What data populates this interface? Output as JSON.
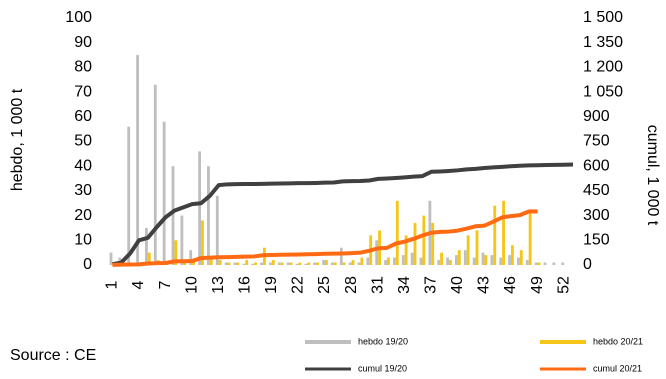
{
  "chart_data": {
    "type": "bar_line",
    "y_label": "hebdo, 1 000 t",
    "y2_label": "cumul, 1 000 t",
    "source": "Source : CE",
    "x": [
      1,
      2,
      3,
      4,
      5,
      6,
      7,
      8,
      9,
      10,
      11,
      12,
      13,
      14,
      15,
      16,
      17,
      18,
      19,
      20,
      21,
      22,
      23,
      24,
      25,
      26,
      27,
      28,
      29,
      30,
      31,
      32,
      33,
      34,
      35,
      36,
      37,
      38,
      39,
      40,
      41,
      42,
      43,
      44,
      45,
      46,
      47,
      48,
      49,
      50,
      51,
      52,
      53
    ],
    "xlim": [
      0.5,
      53
    ],
    "xticks": [
      1,
      4,
      7,
      10,
      13,
      16,
      19,
      22,
      25,
      28,
      31,
      34,
      37,
      40,
      43,
      46,
      49,
      52
    ],
    "ylim": [
      0,
      100
    ],
    "yticks": [
      0,
      10,
      20,
      30,
      40,
      50,
      60,
      70,
      80,
      90,
      100
    ],
    "y2lim": [
      0,
      1500
    ],
    "y2ticks": [
      0,
      150,
      300,
      450,
      600,
      750,
      900,
      {
        "value": 1050,
        "label": "1 050"
      },
      {
        "value": 1200,
        "label": "1 200"
      },
      {
        "value": 1350,
        "label": "1 350"
      },
      {
        "value": 1500,
        "label": "1 500"
      }
    ],
    "series": [
      {
        "name": "hebdo 19/20",
        "kind": "bar",
        "color": "#bfbfbf",
        "values": [
          5,
          3,
          56,
          85,
          15,
          73,
          58,
          40,
          20,
          6,
          46,
          40,
          28,
          1,
          1,
          0.5,
          0.5,
          1,
          1,
          1,
          1,
          0.5,
          0.5,
          1,
          2,
          1,
          7,
          1,
          1,
          3,
          10,
          2,
          3,
          4,
          5,
          3,
          26,
          2,
          3,
          4,
          6,
          3,
          5,
          4,
          3,
          4,
          3,
          2,
          1,
          1,
          1,
          1,
          null
        ]
      },
      {
        "name": "hebdo 20/21",
        "kind": "bar",
        "color": "#f5c518",
        "values": [
          1,
          1,
          1,
          1,
          5,
          2,
          1,
          10,
          1,
          1,
          18,
          3,
          2,
          1,
          1,
          2,
          1,
          7,
          2,
          1,
          1,
          1,
          1,
          1,
          2,
          1,
          1,
          2,
          3,
          12,
          14,
          3,
          26,
          12,
          17,
          20,
          17,
          5,
          2,
          6,
          12,
          14,
          4,
          24,
          26,
          8,
          6,
          22,
          1,
          null,
          null,
          null,
          null
        ]
      },
      {
        "name": "cumul 19/20",
        "kind": "line",
        "axis": "y2",
        "color": "#404040",
        "values": [
          5,
          15,
          70,
          150,
          165,
          230,
          290,
          330,
          350,
          370,
          375,
          420,
          485,
          490,
          491,
          492,
          492,
          493,
          494,
          495,
          496,
          497,
          497,
          498,
          500,
          501,
          508,
          509,
          510,
          513,
          523,
          525,
          528,
          532,
          537,
          540,
          566,
          568,
          571,
          575,
          581,
          584,
          589,
          593,
          596,
          600,
          603,
          605,
          606,
          607,
          608,
          609,
          610
        ]
      },
      {
        "name": "cumul 20/21",
        "kind": "line",
        "axis": "y2",
        "color": "#ff6a13",
        "values": [
          1,
          2,
          3,
          4,
          9,
          11,
          12,
          22,
          23,
          24,
          42,
          45,
          47,
          48,
          49,
          51,
          52,
          59,
          61,
          62,
          63,
          64,
          65,
          66,
          68,
          69,
          70,
          72,
          75,
          87,
          101,
          104,
          130,
          142,
          159,
          179,
          196,
          201,
          203,
          209,
          221,
          235,
          239,
          263,
          289,
          297,
          303,
          325,
          326,
          null,
          null,
          null,
          null
        ]
      }
    ]
  }
}
